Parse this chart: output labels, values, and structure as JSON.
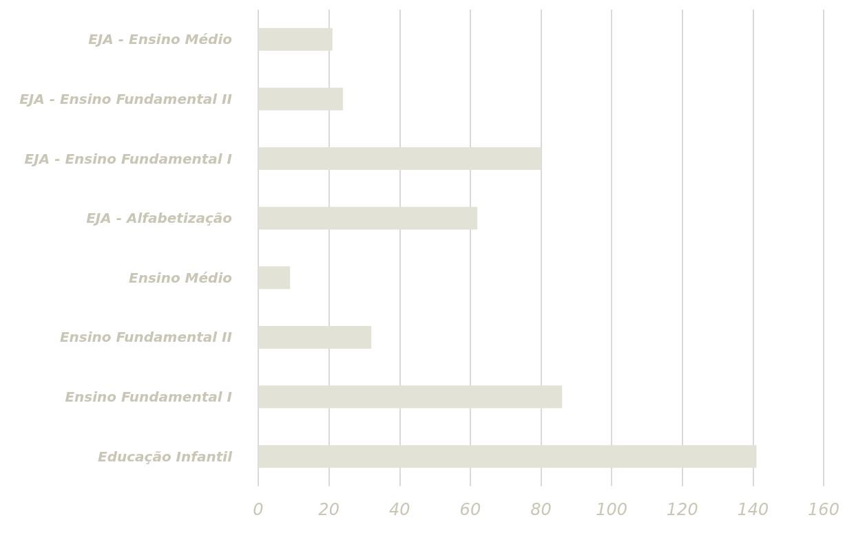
{
  "chart_data": {
    "type": "bar",
    "orientation": "horizontal",
    "categories": [
      "EJA - Ensino Médio",
      "EJA - Ensino Fundamental II",
      "EJA - Ensino Fundamental I",
      "EJA - Alfabetização",
      "Ensino Médio",
      "Ensino Fundamental II",
      "Ensino Fundamental I",
      "Educação Infantil"
    ],
    "values": [
      21,
      24,
      80,
      62,
      9,
      32,
      86,
      141
    ],
    "color": "#e3e2d6",
    "xlim": [
      0,
      160
    ],
    "xticks": [
      0,
      20,
      40,
      60,
      80,
      100,
      120,
      140,
      160
    ],
    "grid": "x"
  }
}
